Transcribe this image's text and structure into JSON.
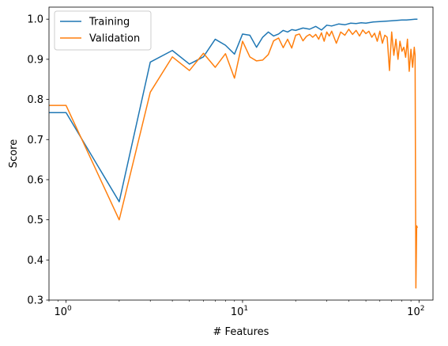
{
  "chart_data": {
    "type": "line",
    "title": "",
    "xlabel": "# Features",
    "ylabel": "Score",
    "xscale": "log",
    "xlim": [
      0.8,
      120
    ],
    "ylim": [
      0.3,
      1.03
    ],
    "xticks": [
      {
        "value": 1,
        "base": "10",
        "exp": "0"
      },
      {
        "value": 10,
        "base": "10",
        "exp": "1"
      },
      {
        "value": 100,
        "base": "10",
        "exp": "2"
      }
    ],
    "yticks": [
      "0.3",
      "0.4",
      "0.5",
      "0.6",
      "0.7",
      "0.8",
      "0.9",
      "1.0"
    ],
    "grid": false,
    "legend": "top-left",
    "series": [
      {
        "name": "Training",
        "color": "#1f77b4",
        "x": [
          0.8,
          1,
          2,
          3,
          4,
          5,
          6,
          7,
          8,
          9,
          10,
          11,
          12,
          13,
          14,
          15,
          16,
          17,
          18,
          19,
          20,
          22,
          24,
          26,
          28,
          30,
          32,
          35,
          38,
          41,
          44,
          47,
          50,
          55,
          60,
          65,
          70,
          75,
          80,
          85,
          90,
          95,
          98
        ],
        "y": [
          0.767,
          0.767,
          0.545,
          0.893,
          0.922,
          0.888,
          0.906,
          0.95,
          0.935,
          0.913,
          0.963,
          0.96,
          0.93,
          0.955,
          0.968,
          0.958,
          0.963,
          0.972,
          0.968,
          0.974,
          0.972,
          0.978,
          0.975,
          0.982,
          0.973,
          0.985,
          0.983,
          0.988,
          0.986,
          0.99,
          0.989,
          0.991,
          0.99,
          0.993,
          0.994,
          0.995,
          0.996,
          0.997,
          0.998,
          0.998,
          0.999,
          1.0,
          1.0
        ]
      },
      {
        "name": "Validation",
        "color": "#ff7f0e",
        "x": [
          0.8,
          1,
          2,
          3,
          4,
          5,
          6,
          7,
          8,
          9,
          10,
          11,
          12,
          13,
          14,
          15,
          16,
          17,
          18,
          19,
          20,
          21,
          22,
          23,
          24,
          25,
          26,
          27,
          28,
          29,
          30,
          31,
          32,
          34,
          36,
          38,
          40,
          42,
          44,
          46,
          48,
          50,
          52,
          54,
          56,
          58,
          60,
          62,
          64,
          66,
          68,
          70,
          72,
          74,
          76,
          78,
          80,
          82,
          84,
          86,
          88,
          90,
          92,
          94,
          95,
          96,
          97,
          98
        ],
        "y": [
          0.785,
          0.785,
          0.5,
          0.818,
          0.906,
          0.872,
          0.915,
          0.88,
          0.914,
          0.853,
          0.945,
          0.906,
          0.896,
          0.898,
          0.912,
          0.946,
          0.953,
          0.929,
          0.95,
          0.928,
          0.96,
          0.963,
          0.946,
          0.957,
          0.962,
          0.955,
          0.962,
          0.95,
          0.966,
          0.945,
          0.968,
          0.958,
          0.97,
          0.94,
          0.968,
          0.96,
          0.975,
          0.962,
          0.972,
          0.958,
          0.973,
          0.964,
          0.97,
          0.955,
          0.965,
          0.945,
          0.97,
          0.94,
          0.96,
          0.955,
          0.872,
          0.968,
          0.91,
          0.95,
          0.9,
          0.945,
          0.92,
          0.93,
          0.905,
          0.95,
          0.87,
          0.925,
          0.88,
          0.93,
          0.91,
          0.33,
          0.485,
          0.48
        ]
      }
    ]
  }
}
